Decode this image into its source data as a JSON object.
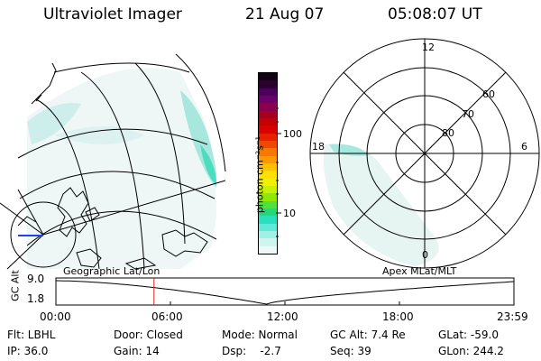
{
  "header": {
    "instrument": "Ultraviolet Imager",
    "date": "21 Aug 07",
    "time": "05:08:07 UT"
  },
  "colorbar": {
    "label": "photon cm⁻²s⁻¹",
    "ticks": [
      "100",
      "10"
    ],
    "colors": [
      "#140014",
      "#2a0030",
      "#4a005a",
      "#6a006a",
      "#8a0050",
      "#a50020",
      "#c40000",
      "#d80000",
      "#e62000",
      "#f04800",
      "#f57800",
      "#fa9a00",
      "#ffc000",
      "#ffe000",
      "#f0f000",
      "#c8f000",
      "#90e800",
      "#50e040",
      "#20d880",
      "#28e0c0",
      "#60e8d8",
      "#a0f0e8",
      "#d0f5f0",
      "#eef8f8"
    ]
  },
  "polar_plot": {
    "mlt_labels": {
      "top": "12",
      "left": "18",
      "right": "6",
      "bottom": "0"
    },
    "lat_labels": [
      "60",
      "70",
      "80"
    ]
  },
  "timeline": {
    "y_axis_label": "GC Alt",
    "y_ticks": [
      "9.0",
      "1.8"
    ],
    "left_title": "Geographic Lat/Lon",
    "right_title": "Apex MLat/MLT",
    "x_ticks": [
      "00:00",
      "06:00",
      "12:00",
      "18:00",
      "23:59"
    ],
    "marker_time_hours": 5.14
  },
  "footer": {
    "flt": "Flt: LBHL",
    "ip": "IP: 36.0",
    "door": "Door: Closed",
    "gain": "Gain: 14",
    "mode": "Mode: Normal",
    "dsp": "Dsp:    -2.7",
    "gcalt": "GC Alt: 7.4 Re",
    "seq": "Seq: 39",
    "glat": "GLat: -59.0",
    "glon": "GLon: 244.2"
  }
}
